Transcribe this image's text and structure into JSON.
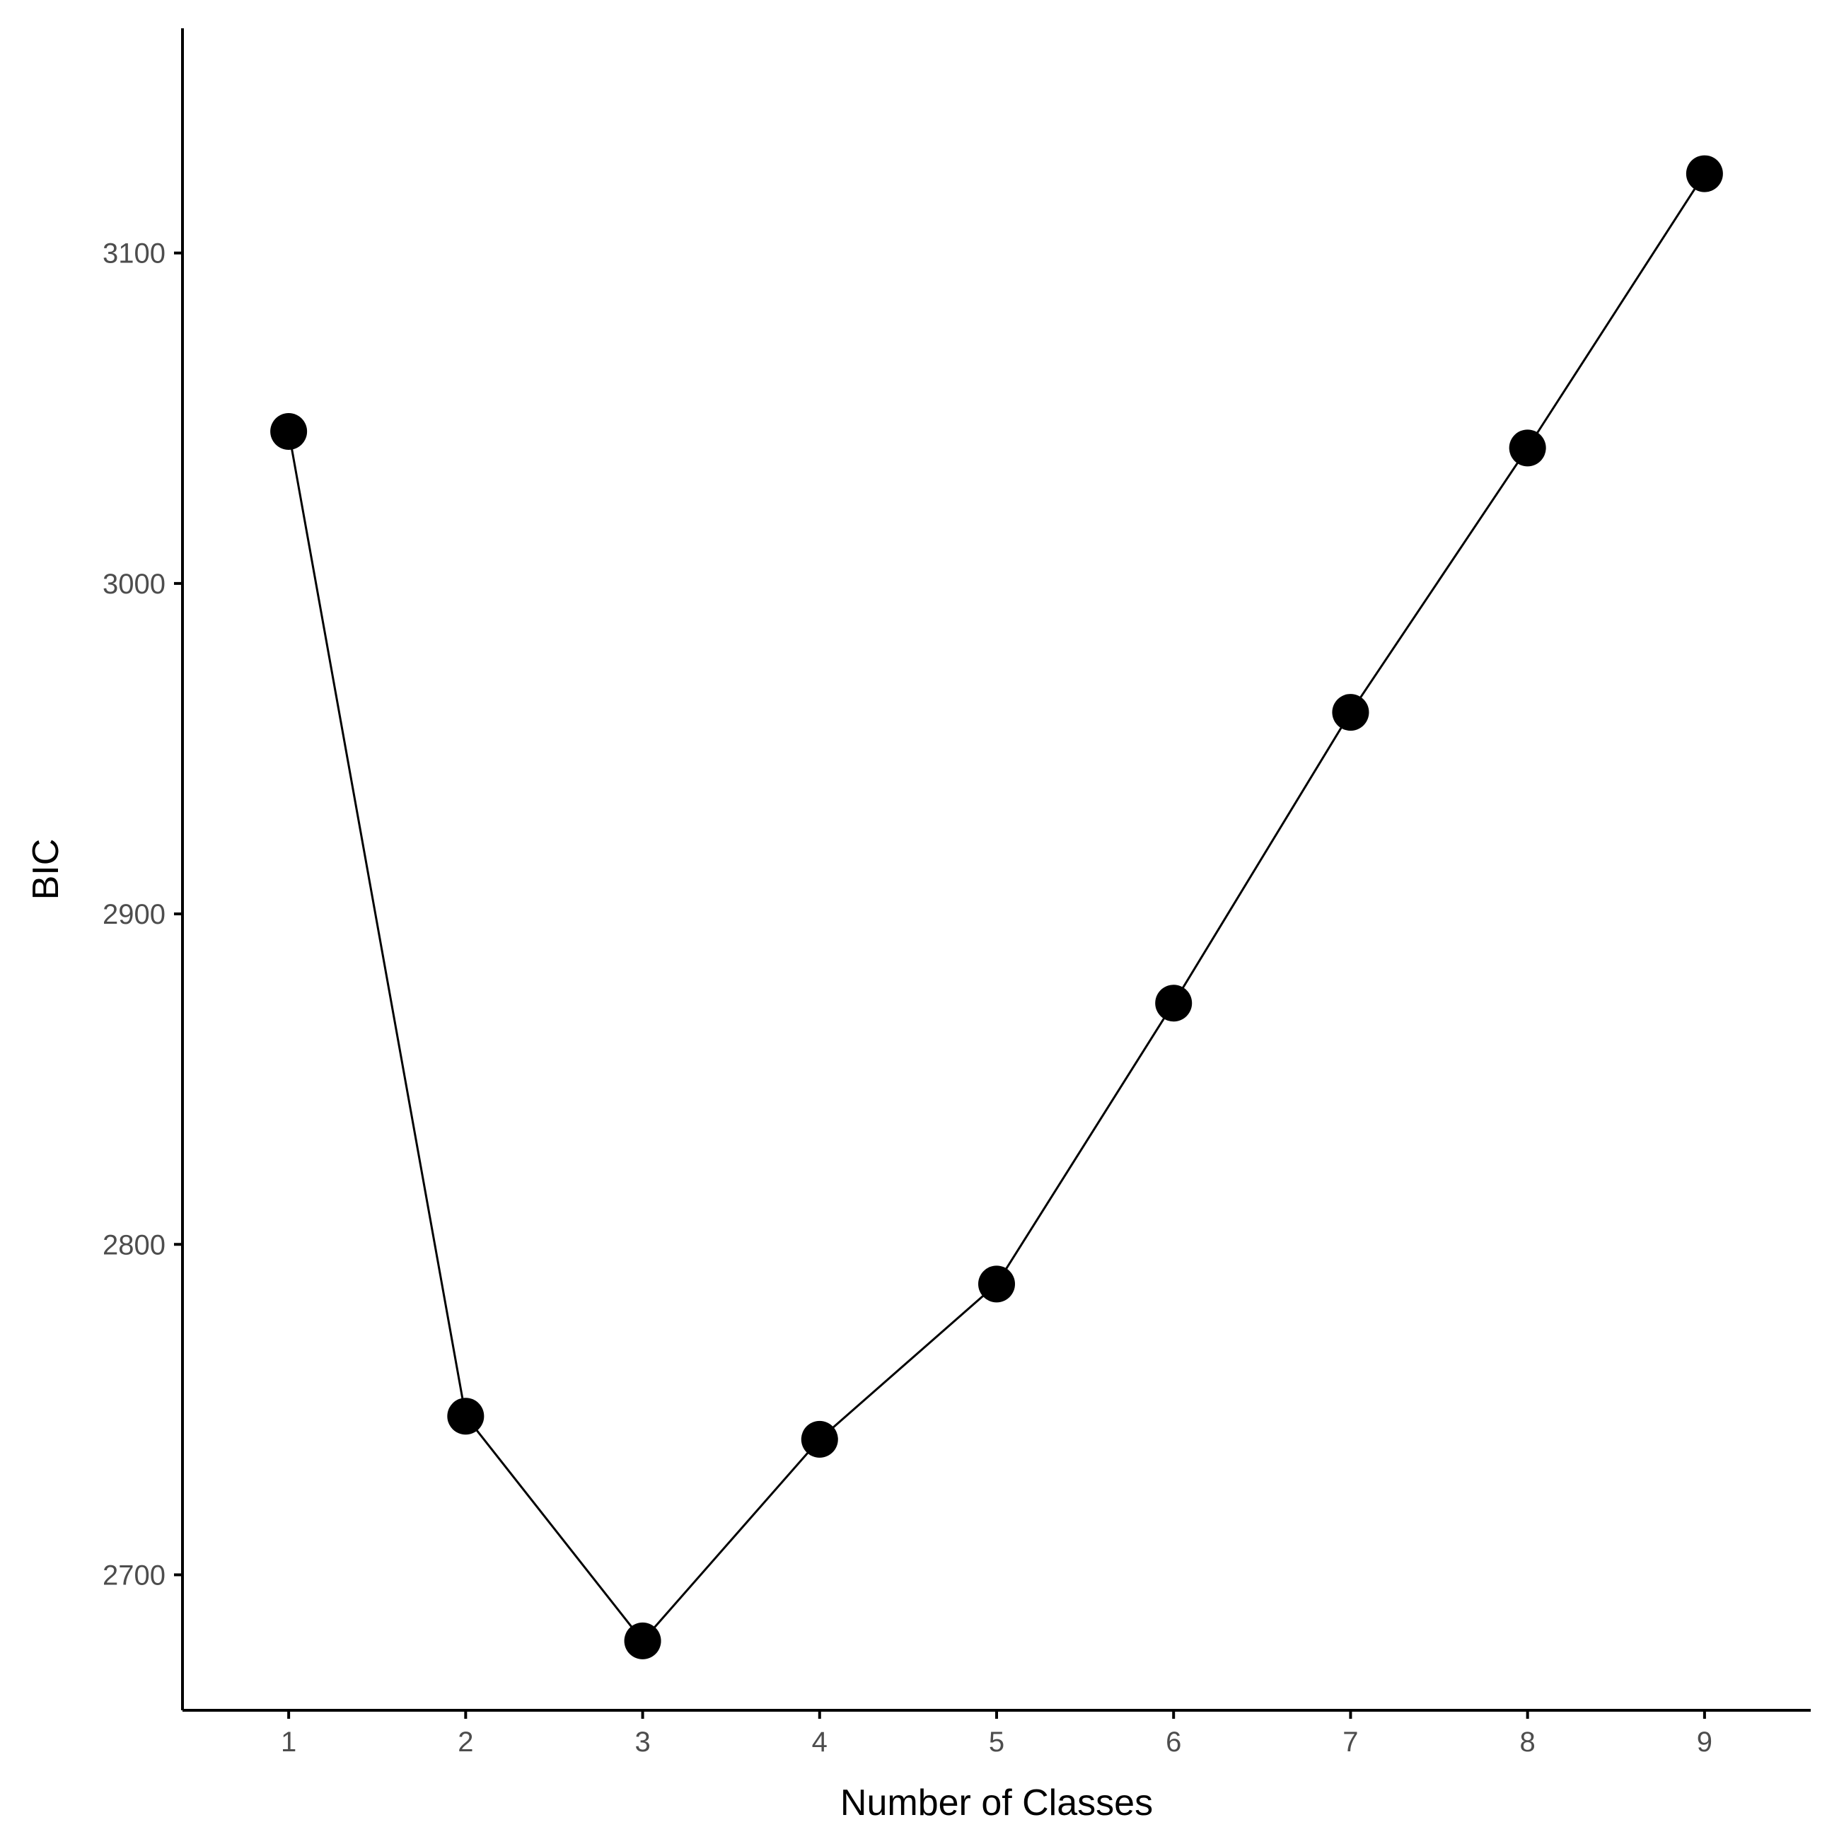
{
  "chart_data": {
    "type": "line",
    "title": "",
    "xlabel": "Number of Classes",
    "ylabel": "BIC",
    "x": [
      1,
      2,
      3,
      4,
      5,
      6,
      7,
      8,
      9
    ],
    "series": [
      {
        "values": [
          3046,
          2748,
          2680,
          2741,
          2788,
          2873,
          2961,
          3041,
          3124
        ]
      }
    ],
    "xlim": [
      0.4,
      9.6
    ],
    "ylim": [
      2659,
      3168
    ],
    "xticks": [
      "1",
      "2",
      "3",
      "4",
      "5",
      "6",
      "7",
      "8",
      "9"
    ],
    "yticks": [
      2700,
      2800,
      2900,
      3000,
      3100
    ],
    "grid": false,
    "legend": "none",
    "colors": {
      "line": "#000000",
      "point": "#000000",
      "axis": "#000000",
      "tick_label": "#4d4d4d"
    }
  }
}
